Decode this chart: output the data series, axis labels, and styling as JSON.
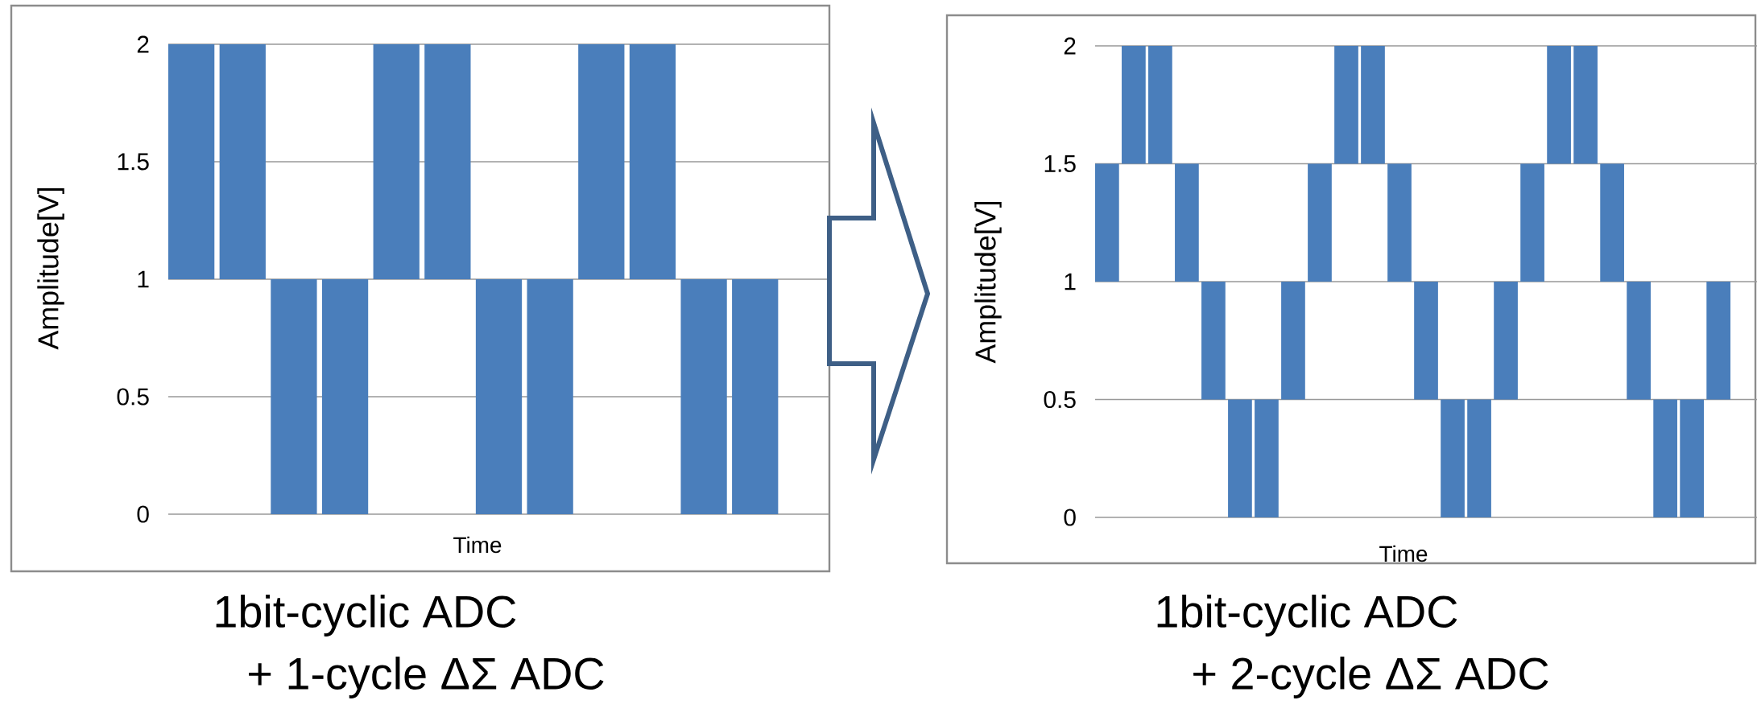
{
  "chart_data": [
    {
      "type": "bar",
      "xlabel": "Time",
      "ylabel": "Amplitude[V]",
      "color": "#4a7ebb",
      "grid": "y",
      "ylim": [
        0,
        2
      ],
      "yticks": [
        0,
        0.5,
        1,
        1.5,
        2
      ],
      "categories": [
        null,
        null,
        null,
        null,
        null,
        null,
        null,
        null,
        null,
        null,
        null,
        null
      ],
      "values": [
        1,
        1,
        1,
        1,
        1,
        1,
        1,
        1,
        1,
        1,
        1,
        1
      ],
      "base": [
        1,
        1,
        0,
        0,
        1,
        1,
        0,
        0,
        1,
        1,
        0,
        0
      ],
      "annotations": [
        "1bit-cyclic ADC",
        "+ 1-cycle ΔΣ ADC"
      ]
    },
    {
      "type": "bar",
      "xlabel": "Time",
      "ylabel": "Amplitude[V]",
      "color": "#4a7ebb",
      "grid": "y",
      "ylim": [
        0,
        2
      ],
      "yticks": [
        0,
        0.5,
        1,
        1.5,
        2
      ],
      "categories": [
        null,
        null,
        null,
        null,
        null,
        null,
        null,
        null,
        null,
        null,
        null,
        null,
        null,
        null,
        null,
        null,
        null,
        null,
        null,
        null,
        null,
        null,
        null,
        null
      ],
      "values": [
        0.5,
        0.5,
        0.5,
        0.5,
        0.5,
        0.5,
        0.5,
        0.5,
        0.5,
        0.5,
        0.5,
        0.5,
        0.5,
        0.5,
        0.5,
        0.5,
        0.5,
        0.5,
        0.5,
        0.5,
        0.5,
        0.5,
        0.5,
        0.5
      ],
      "base": [
        1,
        1.5,
        1.5,
        1,
        0.5,
        0,
        0,
        0.5,
        1,
        1.5,
        1.5,
        1,
        0.5,
        0,
        0,
        0.5,
        1,
        1.5,
        1.5,
        1,
        0.5,
        0,
        0,
        0.5
      ],
      "annotations": [
        "1bit-cyclic ADC",
        "+ 2-cycle ΔΣ ADC"
      ]
    }
  ]
}
